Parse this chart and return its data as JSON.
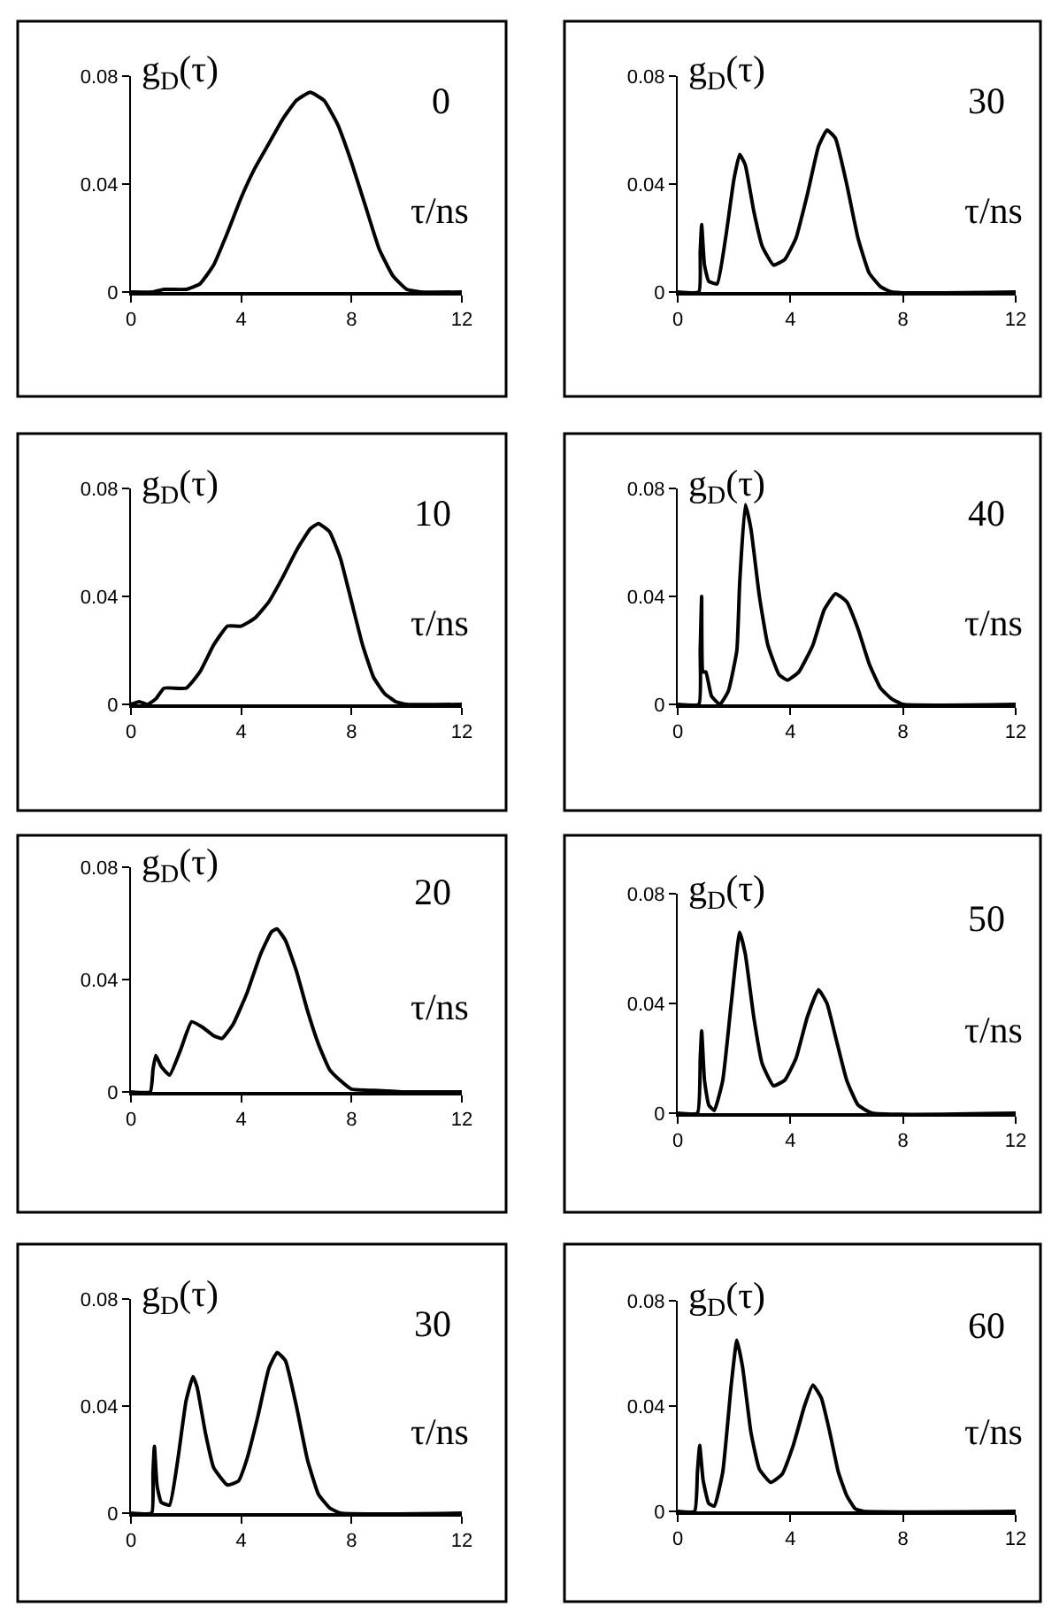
{
  "chart_data": [
    {
      "type": "line",
      "ylabel": "g$_{D}$(τ)",
      "xlabel": "τ/ns",
      "annotations": [
        "0"
      ],
      "color": "#000000",
      "xlim": [
        0,
        12
      ],
      "ylim": [
        0,
        0.08
      ],
      "xticks": [
        0,
        4,
        8,
        12
      ],
      "yticks": [
        0,
        0.04,
        0.08
      ],
      "x": [
        0,
        0.8,
        1.2,
        2,
        2.5,
        3,
        3.5,
        4,
        4.5,
        5,
        5.5,
        6,
        6.5,
        7,
        7.5,
        8,
        8.5,
        9,
        9.5,
        10,
        10.5,
        12
      ],
      "values": [
        0,
        0,
        0.001,
        0.001,
        0.003,
        0.01,
        0.022,
        0.035,
        0.046,
        0.055,
        0.064,
        0.071,
        0.074,
        0.071,
        0.062,
        0.048,
        0.032,
        0.016,
        0.006,
        0.001,
        0,
        0
      ]
    },
    {
      "type": "line",
      "ylabel": "g$_{D}$(τ)",
      "xlabel": "τ/ns",
      "annotations": [
        "30"
      ],
      "color": "#000000",
      "xlim": [
        0,
        12
      ],
      "ylim": [
        0,
        0.08
      ],
      "xticks": [
        0,
        4,
        8,
        12
      ],
      "yticks": [
        0,
        0.04,
        0.08
      ],
      "x": [
        0,
        0.75,
        0.8,
        0.85,
        0.95,
        1.1,
        1.4,
        1.7,
        2.0,
        2.2,
        2.4,
        2.7,
        3.0,
        3.4,
        3.8,
        4.2,
        4.6,
        5.0,
        5.3,
        5.6,
        6.0,
        6.4,
        6.8,
        7.2,
        7.6,
        12
      ],
      "values": [
        0,
        0,
        0.015,
        0.025,
        0.01,
        0.004,
        0.003,
        0.02,
        0.042,
        0.051,
        0.047,
        0.03,
        0.017,
        0.01,
        0.012,
        0.02,
        0.036,
        0.054,
        0.06,
        0.057,
        0.04,
        0.02,
        0.007,
        0.002,
        0,
        0
      ]
    },
    {
      "type": "line",
      "ylabel": "g$_{D}$(τ)",
      "xlabel": "τ/ns",
      "annotations": [
        "10"
      ],
      "color": "#000000",
      "xlim": [
        0,
        12
      ],
      "ylim": [
        0,
        0.08
      ],
      "xticks": [
        0,
        4,
        8,
        12
      ],
      "yticks": [
        0,
        0.04,
        0.08
      ],
      "x": [
        0,
        0.3,
        0.6,
        0.9,
        1.2,
        2.0,
        2.5,
        3.0,
        3.5,
        4.0,
        4.5,
        5.0,
        5.5,
        6.0,
        6.5,
        6.8,
        7.2,
        7.6,
        8.0,
        8.4,
        8.8,
        9.2,
        9.6,
        10,
        12
      ],
      "values": [
        0,
        0.001,
        0,
        0.002,
        0.006,
        0.006,
        0.012,
        0.022,
        0.029,
        0.029,
        0.032,
        0.038,
        0.047,
        0.057,
        0.065,
        0.067,
        0.064,
        0.054,
        0.038,
        0.022,
        0.01,
        0.004,
        0.001,
        0,
        0
      ]
    },
    {
      "type": "line",
      "ylabel": "g$_{D}$(τ)",
      "xlabel": "τ/ns",
      "annotations": [
        "40"
      ],
      "color": "#000000",
      "xlim": [
        0,
        12
      ],
      "ylim": [
        0,
        0.08
      ],
      "xticks": [
        0,
        4,
        8,
        12
      ],
      "yticks": [
        0,
        0.04,
        0.08
      ],
      "x": [
        0,
        0.75,
        0.8,
        0.85,
        0.9,
        1.0,
        1.2,
        1.5,
        1.8,
        2.1,
        2.2,
        2.4,
        2.6,
        2.9,
        3.2,
        3.6,
        3.9,
        4.3,
        4.8,
        5.2,
        5.6,
        6.0,
        6.4,
        6.8,
        7.2,
        7.6,
        8.0,
        12
      ],
      "values": [
        0,
        0,
        0.02,
        0.04,
        0.012,
        0.012,
        0.003,
        0,
        0.005,
        0.02,
        0.045,
        0.074,
        0.065,
        0.04,
        0.022,
        0.011,
        0.009,
        0.012,
        0.022,
        0.035,
        0.041,
        0.038,
        0.028,
        0.015,
        0.006,
        0.002,
        0,
        0
      ]
    },
    {
      "type": "line",
      "ylabel": "g$_{D}$(τ)",
      "xlabel": "τ/ns",
      "annotations": [
        "20"
      ],
      "color": "#000000",
      "xlim": [
        0,
        12
      ],
      "ylim": [
        0,
        0.08
      ],
      "xticks": [
        0,
        4,
        8,
        12
      ],
      "yticks": [
        0,
        0.04,
        0.08
      ],
      "x": [
        0,
        0.7,
        0.8,
        0.9,
        1.1,
        1.4,
        1.8,
        2.2,
        2.6,
        3.0,
        3.3,
        3.7,
        4.2,
        4.7,
        5.1,
        5.3,
        5.6,
        6.0,
        6.4,
        6.8,
        7.2,
        7.6,
        8.0,
        9,
        10,
        12
      ],
      "values": [
        0,
        0,
        0.008,
        0.013,
        0.009,
        0.006,
        0.015,
        0.025,
        0.023,
        0.02,
        0.019,
        0.024,
        0.035,
        0.049,
        0.057,
        0.058,
        0.054,
        0.043,
        0.029,
        0.017,
        0.008,
        0.004,
        0.001,
        0.0005,
        0,
        0
      ]
    },
    {
      "type": "line",
      "ylabel": "g$_{D}$(τ)",
      "xlabel": "τ/ns",
      "annotations": [
        "50"
      ],
      "color": "#000000",
      "xlim": [
        0,
        12
      ],
      "ylim": [
        0,
        0.08
      ],
      "xticks": [
        0,
        4,
        8,
        12
      ],
      "yticks": [
        0,
        0.04,
        0.08
      ],
      "x": [
        0,
        0.7,
        0.8,
        0.85,
        0.95,
        1.1,
        1.3,
        1.6,
        1.9,
        2.2,
        2.4,
        2.7,
        3.0,
        3.4,
        3.8,
        4.2,
        4.6,
        5.0,
        5.3,
        5.6,
        6.0,
        6.4,
        6.9,
        12
      ],
      "values": [
        0,
        0,
        0.02,
        0.03,
        0.012,
        0.003,
        0.001,
        0.012,
        0.04,
        0.066,
        0.058,
        0.035,
        0.018,
        0.01,
        0.012,
        0.02,
        0.035,
        0.045,
        0.04,
        0.028,
        0.012,
        0.003,
        0,
        0
      ]
    },
    {
      "type": "line",
      "ylabel": "g$_{D}$(τ)",
      "xlabel": "τ/ns",
      "annotations": [
        "30"
      ],
      "color": "#000000",
      "xlim": [
        0,
        12
      ],
      "ylim": [
        0,
        0.08
      ],
      "xticks": [
        0,
        4,
        8,
        12
      ],
      "yticks": [
        0,
        0.04,
        0.08
      ],
      "x": [
        0,
        0.75,
        0.8,
        0.85,
        0.95,
        1.1,
        1.4,
        1.7,
        2.0,
        2.25,
        2.4,
        2.7,
        3.0,
        3.5,
        3.9,
        4.2,
        4.6,
        5.0,
        5.3,
        5.6,
        6.0,
        6.4,
        6.8,
        7.2,
        7.6,
        12
      ],
      "values": [
        0,
        0,
        0.015,
        0.025,
        0.01,
        0.004,
        0.003,
        0.02,
        0.042,
        0.051,
        0.047,
        0.03,
        0.017,
        0.0105,
        0.012,
        0.02,
        0.036,
        0.054,
        0.06,
        0.057,
        0.04,
        0.02,
        0.007,
        0.002,
        0,
        0
      ]
    },
    {
      "type": "line",
      "ylabel": "g$_{D}$(τ)",
      "xlabel": "τ/ns",
      "annotations": [
        "60"
      ],
      "color": "#000000",
      "xlim": [
        0,
        12
      ],
      "ylim": [
        0,
        0.08
      ],
      "xticks": [
        0,
        4,
        8,
        12
      ],
      "yticks": [
        0,
        0.04,
        0.08
      ],
      "x": [
        0,
        0.6,
        0.7,
        0.78,
        0.9,
        1.1,
        1.3,
        1.6,
        1.9,
        2.1,
        2.3,
        2.6,
        2.9,
        3.3,
        3.7,
        4.1,
        4.5,
        4.8,
        5.1,
        5.4,
        5.7,
        6.0,
        6.3,
        6.6,
        12
      ],
      "values": [
        0,
        0,
        0.015,
        0.025,
        0.012,
        0.003,
        0.002,
        0.015,
        0.048,
        0.065,
        0.055,
        0.03,
        0.016,
        0.011,
        0.014,
        0.025,
        0.04,
        0.048,
        0.043,
        0.03,
        0.015,
        0.006,
        0.001,
        0,
        0
      ]
    }
  ]
}
